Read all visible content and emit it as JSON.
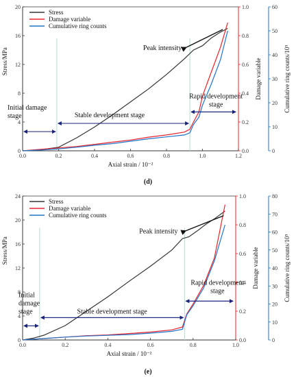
{
  "chart_data": [
    {
      "type": "line",
      "panel_label": "(d)",
      "xlabel": "Axial strain / 10⁻²",
      "xlim": [
        0,
        1.2
      ],
      "xticks": [
        "0.0",
        "0.2",
        "0.4",
        "0.6",
        "0.8",
        "1.0",
        "1.2"
      ],
      "axes": {
        "stress": {
          "label": "Stress/MPa",
          "lim": [
            0,
            20
          ],
          "ticks": [
            "0",
            "4",
            "8",
            "12",
            "16",
            "20"
          ],
          "color": "#333333"
        },
        "damage": {
          "label": "Damage variable",
          "lim": [
            0,
            1
          ],
          "ticks": [
            "0.0",
            "0.2",
            "0.4",
            "0.6",
            "0.8",
            "1.0"
          ],
          "color": "#e8232a"
        },
        "ring": {
          "label": "Cumulative ring counts/10⁵",
          "lim": [
            0,
            60
          ],
          "ticks": [
            "0",
            "10",
            "20",
            "30",
            "40",
            "50",
            "60"
          ],
          "color": "#1f72c9"
        }
      },
      "series": [
        {
          "name": "Stress",
          "axis": "stress",
          "color": "#333333",
          "x": [
            0,
            0.1,
            0.2,
            0.3,
            0.4,
            0.5,
            0.6,
            0.7,
            0.8,
            0.9,
            0.95,
            1.0,
            1.05,
            1.1,
            1.14
          ],
          "y": [
            0,
            0.15,
            0.5,
            1.8,
            3.3,
            5.0,
            6.8,
            8.6,
            10.6,
            12.8,
            14.0,
            14.6,
            15.7,
            16.5,
            17.0
          ]
        },
        {
          "name": "Damage variable",
          "axis": "damage",
          "color": "#e8232a",
          "x": [
            0,
            0.1,
            0.2,
            0.3,
            0.4,
            0.5,
            0.6,
            0.7,
            0.8,
            0.9,
            0.93,
            0.95,
            0.98,
            1.0,
            1.05,
            1.1,
            1.14
          ],
          "y": [
            0,
            0.01,
            0.02,
            0.03,
            0.045,
            0.06,
            0.075,
            0.095,
            0.11,
            0.13,
            0.15,
            0.2,
            0.27,
            0.38,
            0.55,
            0.72,
            0.89
          ]
        },
        {
          "name": "Cumulative ring counts",
          "axis": "ring",
          "color": "#1f72c9",
          "x": [
            0,
            0.1,
            0.2,
            0.3,
            0.4,
            0.5,
            0.6,
            0.7,
            0.8,
            0.9,
            0.93,
            0.95,
            0.98,
            1.0,
            1.05,
            1.1,
            1.14
          ],
          "y": [
            0,
            0.3,
            0.8,
            1.5,
            2.3,
            3.0,
            4.0,
            5.0,
            5.8,
            6.6,
            7.5,
            11,
            14,
            19,
            28,
            38,
            50
          ]
        }
      ],
      "annotations": {
        "peak": "Peak intensity",
        "initial": "Initial damage\nstage",
        "stable": "Stable development stage",
        "rapid": "Rapid development\nstage"
      },
      "stage_bounds": [
        0.19,
        0.93
      ],
      "peak_point": [
        0.93,
        13.2
      ],
      "legend": "top-left"
    },
    {
      "type": "line",
      "panel_label": "(e)",
      "xlabel": "Axial strain / 10⁻²",
      "xlim": [
        0,
        1.0
      ],
      "xticks": [
        "0.0",
        "0.2",
        "0.4",
        "0.6",
        "0.8",
        "1.0"
      ],
      "axes": {
        "stress": {
          "label": "Stress/MPa",
          "lim": [
            0,
            24
          ],
          "ticks": [
            "0",
            "4",
            "8",
            "12",
            "16",
            "20",
            "24"
          ],
          "color": "#333333"
        },
        "damage": {
          "label": "Damage variable",
          "lim": [
            0,
            1
          ],
          "ticks": [
            "0.0",
            "0.2",
            "0.4",
            "0.6",
            "0.8",
            "1.0"
          ],
          "color": "#e8232a"
        },
        "ring": {
          "label": "Cumulative ring counts/10⁵",
          "lim": [
            0,
            80
          ],
          "ticks": [
            "0",
            "10",
            "20",
            "30",
            "40",
            "50",
            "60",
            "70",
            "80"
          ],
          "color": "#1f72c9"
        }
      },
      "series": [
        {
          "name": "Stress",
          "axis": "stress",
          "color": "#333333",
          "x": [
            0,
            0.05,
            0.1,
            0.2,
            0.3,
            0.4,
            0.5,
            0.6,
            0.7,
            0.75,
            0.78,
            0.82,
            0.86,
            0.9,
            0.95
          ],
          "y": [
            0,
            0.3,
            0.8,
            2.4,
            4.8,
            7.2,
            9.8,
            12.3,
            15.0,
            16.9,
            17.2,
            18.2,
            19.3,
            20.2,
            21.5
          ]
        },
        {
          "name": "Damage variable",
          "axis": "damage",
          "color": "#e8232a",
          "x": [
            0,
            0.1,
            0.2,
            0.3,
            0.4,
            0.5,
            0.6,
            0.7,
            0.75,
            0.77,
            0.8,
            0.85,
            0.9,
            0.95
          ],
          "y": [
            0,
            0.01,
            0.02,
            0.03,
            0.035,
            0.045,
            0.055,
            0.07,
            0.09,
            0.18,
            0.25,
            0.38,
            0.57,
            0.94
          ]
        },
        {
          "name": "Cumulative ring counts",
          "axis": "ring",
          "color": "#1f72c9",
          "x": [
            0,
            0.1,
            0.2,
            0.3,
            0.4,
            0.5,
            0.6,
            0.7,
            0.75,
            0.77,
            0.8,
            0.85,
            0.9,
            0.95
          ],
          "y": [
            0,
            0.8,
            1.6,
            2.2,
            2.6,
            3.0,
            3.8,
            4.8,
            6.0,
            14,
            19,
            29,
            44,
            64
          ]
        }
      ],
      "annotations": {
        "peak": "Peak intensity",
        "initial": "Initial\ndamage\nstage",
        "stable": "Stable development stage",
        "rapid": "Rapid development\nstage"
      },
      "stage_bounds": [
        0.08,
        0.76
      ],
      "peak_point": [
        0.76,
        17.0
      ],
      "legend": "top-left"
    }
  ]
}
